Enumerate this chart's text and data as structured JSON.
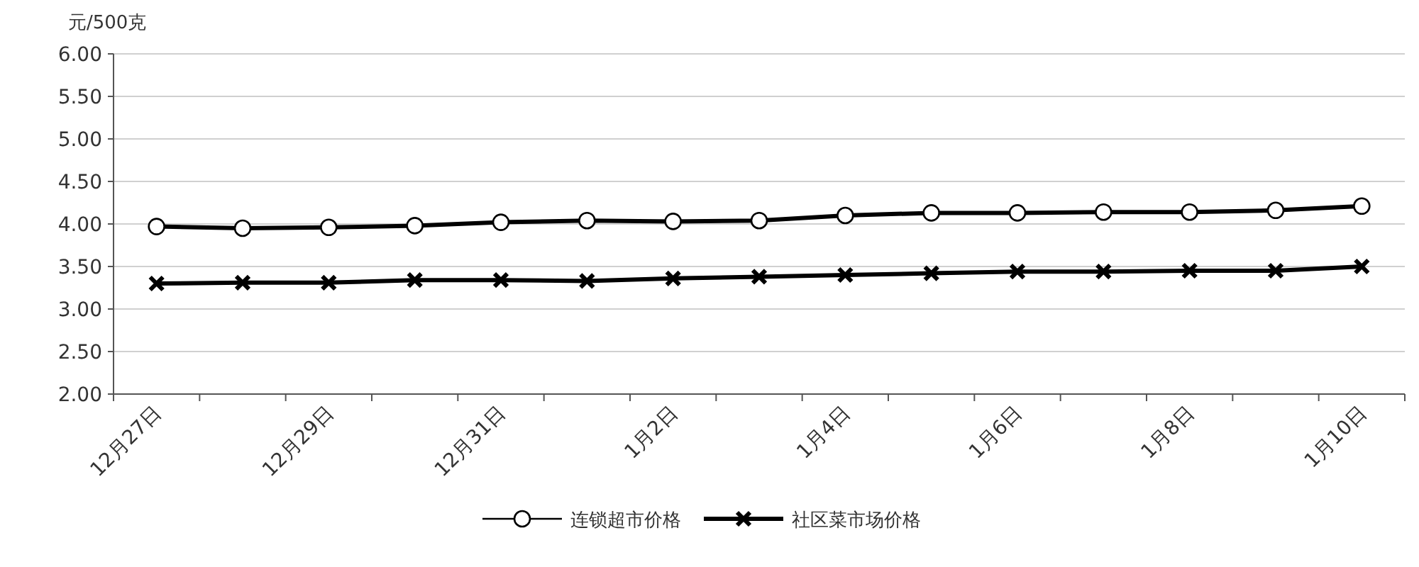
{
  "chart_data": {
    "type": "line",
    "ylabel": "元/500克",
    "categories": [
      "12月27日",
      null,
      "12月29日",
      null,
      "12月31日",
      null,
      "1月2日",
      null,
      "1月4日",
      null,
      "1月6日",
      null,
      "1月8日",
      null,
      "1月10日"
    ],
    "series": [
      {
        "name": "连锁超市价格",
        "color": "#000000",
        "marker": "circle",
        "values": [
          3.97,
          3.95,
          3.96,
          3.98,
          4.02,
          4.04,
          4.03,
          4.04,
          4.1,
          4.13,
          4.13,
          4.14,
          4.14,
          4.16,
          4.21
        ]
      },
      {
        "name": "社区菜市场价格",
        "color": "#000000",
        "marker": "cross",
        "values": [
          3.3,
          3.31,
          3.31,
          3.34,
          3.34,
          3.33,
          3.36,
          3.38,
          3.4,
          3.42,
          3.44,
          3.44,
          3.45,
          3.45,
          3.5
        ]
      }
    ],
    "ylim": [
      2,
      6
    ],
    "yticks": [
      {
        "value": 2,
        "label": "2.00"
      },
      {
        "value": 2.5,
        "label": "2.50"
      },
      {
        "value": 3,
        "label": "3.00"
      },
      {
        "value": 3.5,
        "label": "3.50"
      },
      {
        "value": 4,
        "label": "4.00"
      },
      {
        "value": 4.5,
        "label": "4.50"
      },
      {
        "value": 5,
        "label": "5.00"
      },
      {
        "value": 5.5,
        "label": "5.50"
      },
      {
        "value": 6,
        "label": "6.00"
      }
    ],
    "grid": "y",
    "legend": "bottom",
    "line_style": "solid"
  }
}
